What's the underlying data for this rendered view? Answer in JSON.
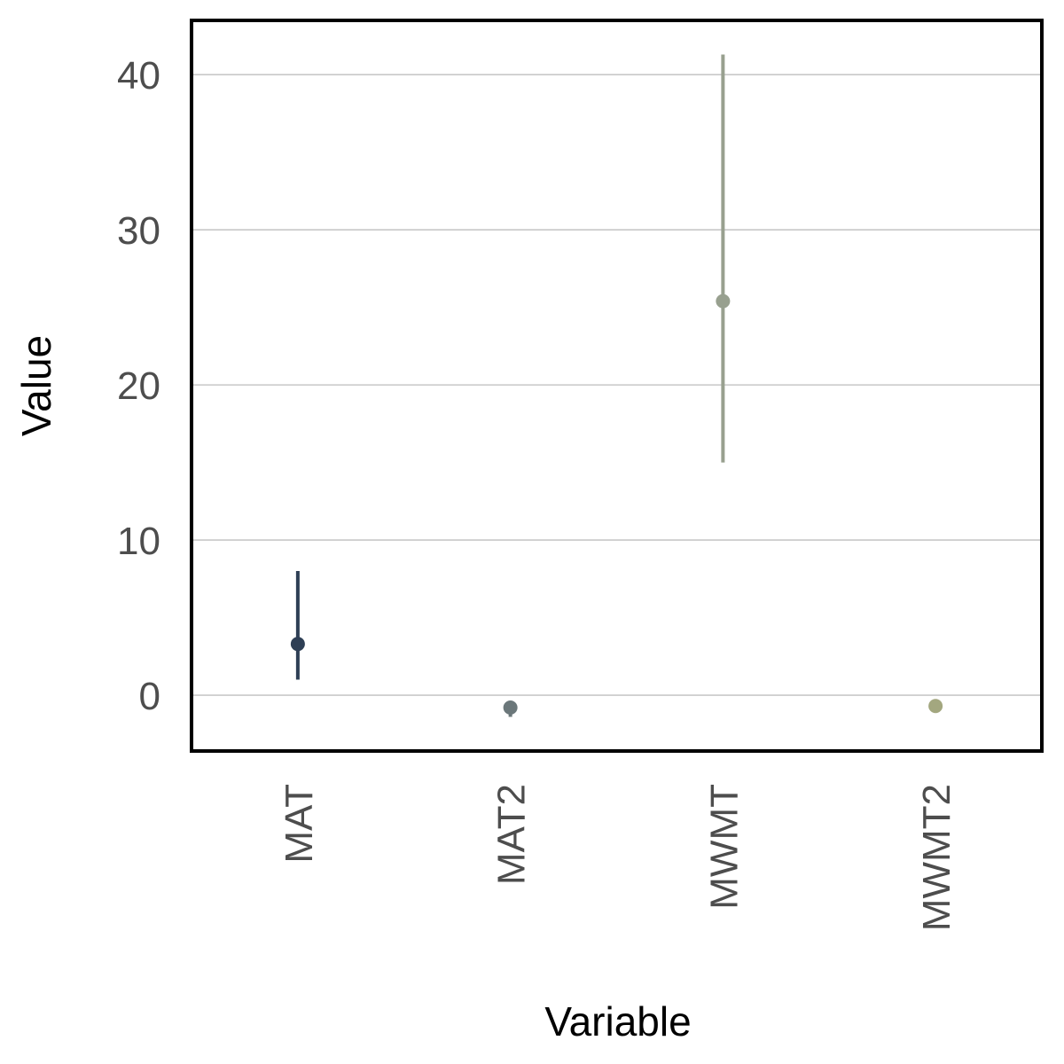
{
  "chart_data": {
    "type": "scatter",
    "subtype": "point-range",
    "xlabel": "Variable",
    "ylabel": "Value",
    "categories": [
      "MAT",
      "MAT2",
      "MWMT",
      "MWMT2"
    ],
    "points": [
      {
        "category": "MAT",
        "value": 3.3,
        "lower": 1.0,
        "upper": 8.0,
        "color": "#2e3f55"
      },
      {
        "category": "MAT2",
        "value": -0.8,
        "lower": -1.4,
        "upper": -0.6,
        "color": "#6b777a"
      },
      {
        "category": "MWMT",
        "value": 25.4,
        "lower": 15.0,
        "upper": 41.3,
        "color": "#98a08f"
      },
      {
        "category": "MWMT2",
        "value": -0.7,
        "lower": -0.7,
        "upper": -0.7,
        "color": "#a3a77f"
      }
    ],
    "y_ticks": [
      0,
      10,
      20,
      30,
      40
    ],
    "ylim": [
      -3.6,
      43.5
    ],
    "grid": "horizontal-major",
    "legend": "none"
  }
}
